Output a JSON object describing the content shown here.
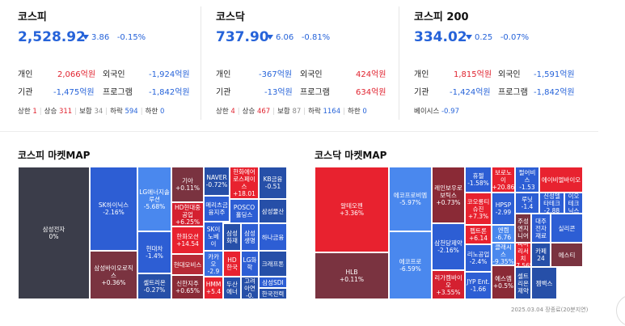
{
  "indices": [
    {
      "title": "코스피",
      "value": "2,528.92",
      "change": "3.86",
      "change_pct": "-0.15%",
      "rows": [
        {
          "l1": "개인",
          "v1": "2,066억원",
          "d1": "up",
          "l2": "외국인",
          "v2": "-1,924억원",
          "d2": "down"
        },
        {
          "l1": "기관",
          "v1": "-1,475억원",
          "d1": "down",
          "l2": "프로그램",
          "v2": "-1,842억원",
          "d2": "down"
        }
      ],
      "limits": [
        {
          "label": "상한",
          "value": "1",
          "d": "up"
        },
        {
          "label": "상승",
          "value": "311",
          "d": "up"
        },
        {
          "label": "보합",
          "value": "34",
          "d": "flat"
        },
        {
          "label": "하락",
          "value": "594",
          "d": "down"
        },
        {
          "label": "하한",
          "value": "0",
          "d": "down"
        }
      ]
    },
    {
      "title": "코스닥",
      "value": "737.90",
      "change": "6.06",
      "change_pct": "-0.81%",
      "rows": [
        {
          "l1": "개인",
          "v1": "-367억원",
          "d1": "down",
          "l2": "외국인",
          "v2": "424억원",
          "d2": "up"
        },
        {
          "l1": "기관",
          "v1": "-13억원",
          "d1": "down",
          "l2": "프로그램",
          "v2": "634억원",
          "d2": "up"
        }
      ],
      "limits": [
        {
          "label": "상한",
          "value": "4",
          "d": "up"
        },
        {
          "label": "상승",
          "value": "467",
          "d": "up"
        },
        {
          "label": "보합",
          "value": "87",
          "d": "flat"
        },
        {
          "label": "하락",
          "value": "1164",
          "d": "down"
        },
        {
          "label": "하한",
          "value": "0",
          "d": "down"
        }
      ]
    },
    {
      "title": "코스피 200",
      "value": "334.02",
      "change": "0.25",
      "change_pct": "-0.07%",
      "rows": [
        {
          "l1": "개인",
          "v1": "1,815억원",
          "d1": "up",
          "l2": "외국인",
          "v2": "-1,591억원",
          "d2": "down"
        },
        {
          "l1": "기관",
          "v1": "-1,424억원",
          "d1": "down",
          "l2": "프로그램",
          "v2": "-1,842억원",
          "d2": "down"
        }
      ],
      "basis_label": "베이시스",
      "basis_value": "-0.97"
    }
  ],
  "maps": {
    "kospi_title": "코스피 마켓MAP",
    "kosdaq_title": "코스닥 마켓MAP",
    "kospi_cells": [
      {
        "name": "삼성전자",
        "pct": "0%",
        "color": "#3b3d4a"
      },
      {
        "name": "SK하이닉스",
        "pct": "-2.16%",
        "color": "#2d5ed4"
      },
      {
        "name": "삼성바이오로직스",
        "pct": "+0.36%",
        "color": "#7a3340"
      },
      {
        "name": "LG에너지솔루션",
        "pct": "-5.68%",
        "color": "#4a88ee"
      },
      {
        "name": "현대차",
        "pct": "-1.4%",
        "color": "#2d5ed4"
      },
      {
        "name": "셀트리온",
        "pct": "-0.27%",
        "color": "#264fa8"
      },
      {
        "name": "기아",
        "pct": "+0.11%",
        "color": "#7a3340"
      },
      {
        "name": "HD현대중공업",
        "pct": "+6.25%",
        "color": "#d42030"
      },
      {
        "name": "한화오션",
        "pct": "+14.54",
        "color": "#e8222f"
      },
      {
        "name": "현대모비스",
        "pct": "",
        "color": "#b62a36"
      },
      {
        "name": "신한지주",
        "pct": "+0.65%",
        "color": "#8a2a36"
      },
      {
        "name": "NAVER",
        "pct": "-0.72%",
        "color": "#264fa8"
      },
      {
        "name": "메리츠금융지주",
        "pct": "",
        "color": "#2d5ed4"
      },
      {
        "name": "SK이노베이",
        "pct": "",
        "color": "#2d5ed4"
      },
      {
        "name": "카카오",
        "pct": "-2.9",
        "color": "#3a6fe0"
      },
      {
        "name": "HMM",
        "pct": "+5.4",
        "color": "#e8222f"
      },
      {
        "name": "한화에어로스페이스",
        "pct": "+18.01",
        "color": "#e8222f"
      },
      {
        "name": "POSCO홀딩스",
        "pct": "",
        "color": "#2d5ed4"
      },
      {
        "name": "삼성화재",
        "pct": "",
        "color": "#264fa8"
      },
      {
        "name": "HD한국",
        "pct": "",
        "color": "#e8222f"
      },
      {
        "name": "두산에너",
        "pct": "",
        "color": "#264fa8"
      },
      {
        "name": "KB금융",
        "pct": "-0.51",
        "color": "#264fa8"
      },
      {
        "name": "삼성물산",
        "pct": "",
        "color": "#264fa8"
      },
      {
        "name": "삼성생명",
        "pct": "",
        "color": "#2d5ed4"
      },
      {
        "name": "하나금융",
        "pct": "",
        "color": "#2d5ed4"
      },
      {
        "name": "LG화학",
        "pct": "",
        "color": "#2d5ed4"
      },
      {
        "name": "크래프톤",
        "pct": "",
        "color": "#264fa8"
      },
      {
        "name": "고려아연",
        "pct": "-0.",
        "color": "#264fa8"
      },
      {
        "name": "삼성SDI",
        "pct": "",
        "color": "#2d5ed4"
      },
      {
        "name": "한국전력",
        "pct": "",
        "color": "#264fa8"
      }
    ],
    "kosdaq_cells": [
      {
        "name": "알테오젠",
        "pct": "+3.36%",
        "color": "#e8222f"
      },
      {
        "name": "HLB",
        "pct": "+0.11%",
        "color": "#7a3340"
      },
      {
        "name": "에코프로비엠",
        "pct": "-5.97%",
        "color": "#4a88ee"
      },
      {
        "name": "에코프로",
        "pct": "-6.59%",
        "color": "#4a88ee"
      },
      {
        "name": "레인보우로보틱스",
        "pct": "+0.73%",
        "color": "#8a2a36"
      },
      {
        "name": "삼천당제약",
        "pct": "-2.16%",
        "color": "#2d5ed4"
      },
      {
        "name": "리가켐바이오",
        "pct": "+3.55%",
        "color": "#d42030"
      },
      {
        "name": "휴젤",
        "pct": "-1.58%",
        "color": "#2d5ed4"
      },
      {
        "name": "코오롱티슈진",
        "pct": "+7.3%",
        "color": "#e8222f"
      },
      {
        "name": "펩트론",
        "pct": "+6.14",
        "color": "#e8222f"
      },
      {
        "name": "리노공업",
        "pct": "-2.4%",
        "color": "#2d5ed4"
      },
      {
        "name": "JYP Ent.",
        "pct": "-1.66",
        "color": "#2d5ed4"
      },
      {
        "name": "보로노이",
        "pct": "+20.86",
        "color": "#e8222f"
      },
      {
        "name": "HPSP",
        "pct": "-2.99",
        "color": "#2d5ed4"
      },
      {
        "name": "엔켐",
        "pct": "-6.76",
        "color": "#4a88ee"
      },
      {
        "name": "클래시스",
        "pct": "-9.35%",
        "color": "#4a88ee"
      },
      {
        "name": "에스엠",
        "pct": "+0.5%",
        "color": "#8a2a36"
      },
      {
        "name": "펄어비스",
        "pct": "-1.53",
        "color": "#2d5ed4"
      },
      {
        "name": "루닛",
        "pct": "-1.4",
        "color": "#2d5ed4"
      },
      {
        "name": "주성엔지니어",
        "pct": "",
        "color": "#7a3340"
      },
      {
        "name": "파마리서치",
        "pct": "+7.56%",
        "color": "#e8222f"
      },
      {
        "name": "셀트리온제약",
        "pct": "",
        "color": "#264fa8"
      },
      {
        "name": "에이비엘바이오",
        "pct": "",
        "color": "#e8222f"
      },
      {
        "name": "신성델타테크",
        "pct": "-2.88",
        "color": "#2d5ed4"
      },
      {
        "name": "이오테크닉스",
        "pct": "",
        "color": "#2d5ed4"
      },
      {
        "name": "대주전자재료",
        "pct": "",
        "color": "#2d5ed4"
      },
      {
        "name": "실리콘",
        "pct": "",
        "color": "#2d5ed4"
      },
      {
        "name": "카페24",
        "pct": "",
        "color": "#264fa8"
      },
      {
        "name": "에스티",
        "pct": "",
        "color": "#7a3340"
      },
      {
        "name": "젬백스",
        "pct": "",
        "color": "#264fa8"
      }
    ]
  },
  "footnote": "2025.03.04 장종료(20분지연)"
}
